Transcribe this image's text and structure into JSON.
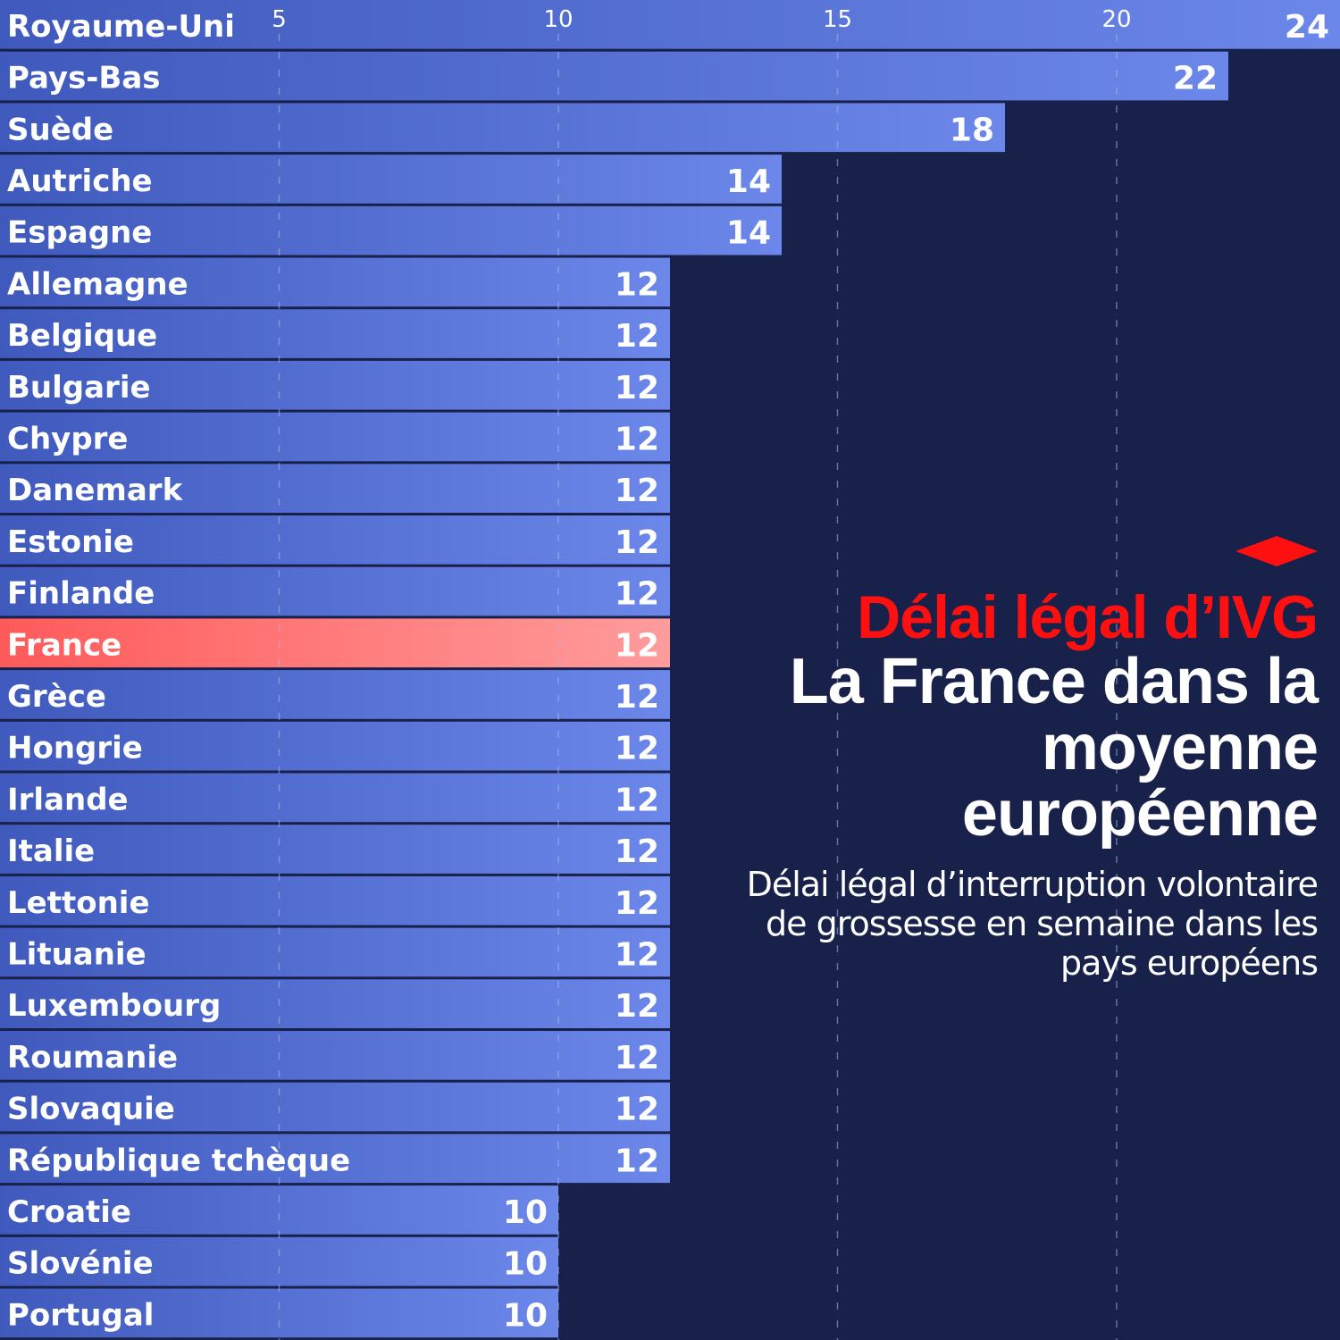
{
  "header": {
    "kicker": "Délai légal d’IVG",
    "title": "La France dans la moyenne européenne",
    "subtitle": "Délai légal d’interruption volontaire de grossesse en semaine dans les pays européens"
  },
  "colors": {
    "background": "#17214a",
    "bar_start": "#3f59bd",
    "bar_end": "#6c87ea",
    "highlight_start": "#ff5a5a",
    "highlight_end": "#ff9c9c",
    "accent": "#ff1010",
    "gridline": "#a9b6e6"
  },
  "chart_data": {
    "type": "bar",
    "orientation": "horizontal",
    "title": "",
    "xlabel": "",
    "ylabel": "",
    "xlim": [
      0,
      24
    ],
    "x_ticks": [
      5,
      10,
      15,
      20
    ],
    "x_tick_labels": [
      "5",
      "10",
      "15",
      "20"
    ],
    "grid": true,
    "highlight": "France",
    "categories": [
      "Royaume-Uni",
      "Pays-Bas",
      "Suède",
      "Autriche",
      "Espagne",
      "Allemagne",
      "Belgique",
      "Bulgarie",
      "Chypre",
      "Danemark",
      "Estonie",
      "Finlande",
      "France",
      "Grèce",
      "Hongrie",
      "Irlande",
      "Italie",
      "Lettonie",
      "Lituanie",
      "Luxembourg",
      "Roumanie",
      "Slovaquie",
      "République tchèque",
      "Croatie",
      "Slovénie",
      "Portugal"
    ],
    "values": [
      24,
      22,
      18,
      14,
      14,
      12,
      12,
      12,
      12,
      12,
      12,
      12,
      12,
      12,
      12,
      12,
      12,
      12,
      12,
      12,
      12,
      12,
      12,
      10,
      10,
      10
    ],
    "value_labels": [
      "24",
      "22",
      "18",
      "14",
      "14",
      "12",
      "12",
      "12",
      "12",
      "12",
      "12",
      "12",
      "12",
      "12",
      "12",
      "12",
      "12",
      "12",
      "12",
      "12",
      "12",
      "12",
      "12",
      "10",
      "10",
      "10"
    ]
  }
}
